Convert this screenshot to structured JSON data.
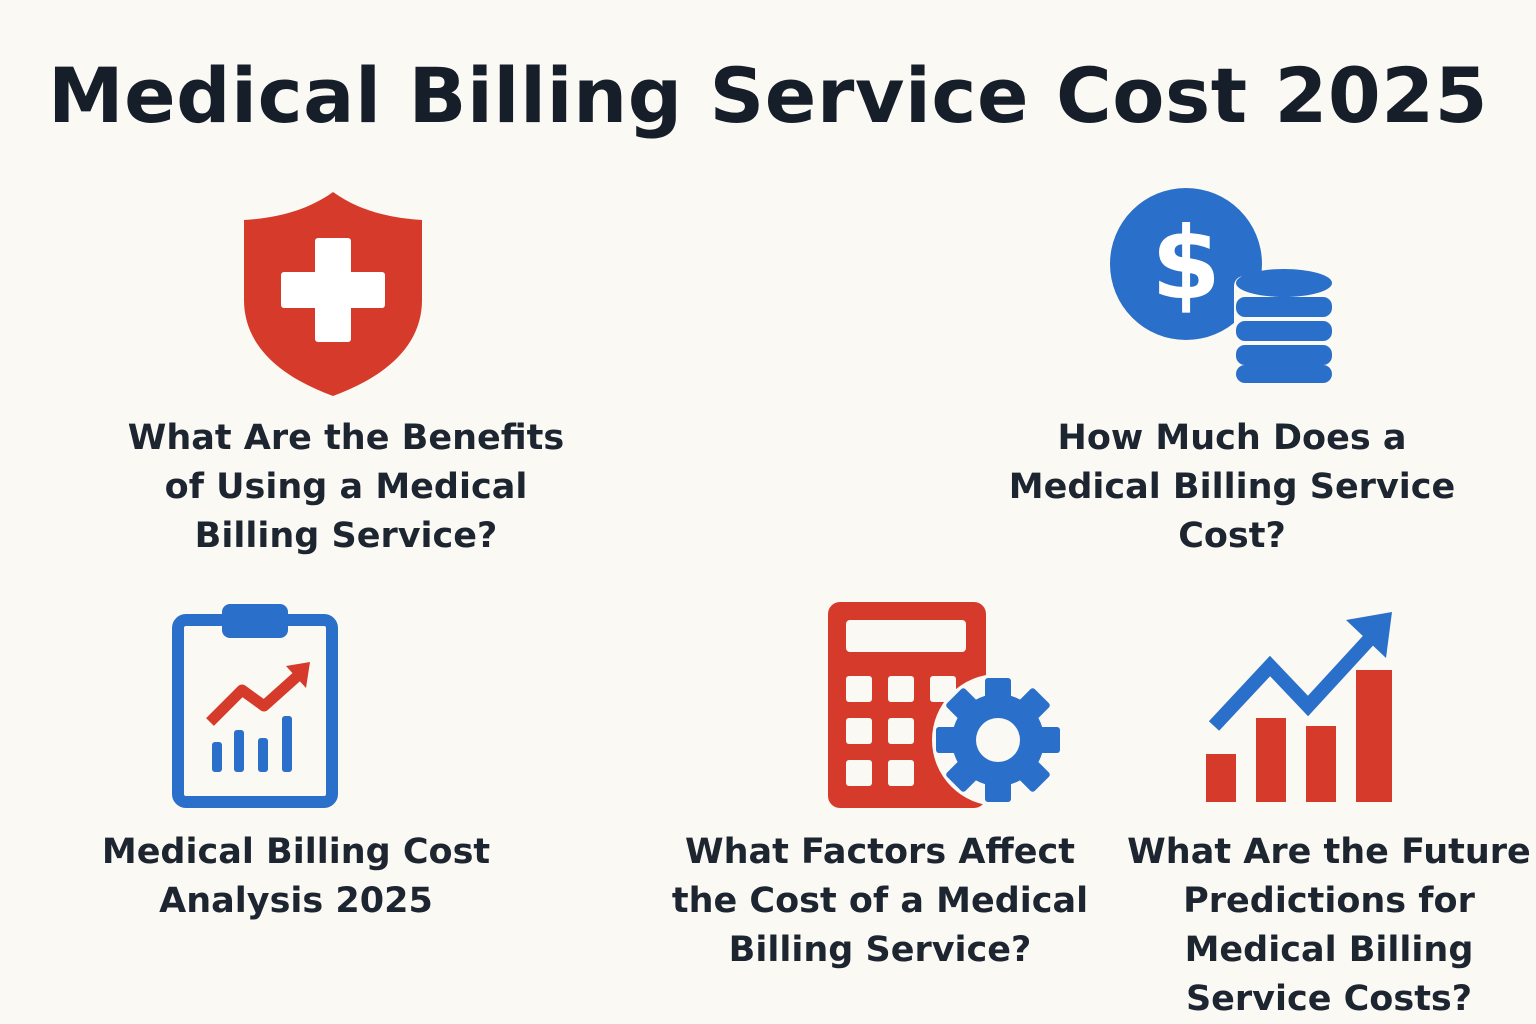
{
  "title": "Medical Billing Service Cost 2025",
  "colors": {
    "background": "#fbf9f4",
    "red": "#d63a2a",
    "blue": "#2a6fc9",
    "text": "#1d2530"
  },
  "sections": [
    {
      "icon": "shield-plus-icon",
      "lines": [
        "What Are the Benefits",
        "of Using a Medical",
        "Billing Service?"
      ]
    },
    {
      "icon": "dollar-coins-icon",
      "lines": [
        "How Much Does a",
        "Medical Billing Service",
        "Cost?"
      ]
    },
    {
      "icon": "clipboard-chart-icon",
      "lines": [
        "Medical Billing Cost",
        "Analysis 2025"
      ]
    },
    {
      "icon": "calculator-gear-icon",
      "lines": [
        "What Factors Affect",
        "the Cost of a Medical",
        "Billing Service?"
      ]
    },
    {
      "icon": "growth-chart-icon",
      "lines": [
        "What Are the Future",
        "Predictions for",
        "Medical Billing",
        "Service Costs?"
      ]
    }
  ]
}
